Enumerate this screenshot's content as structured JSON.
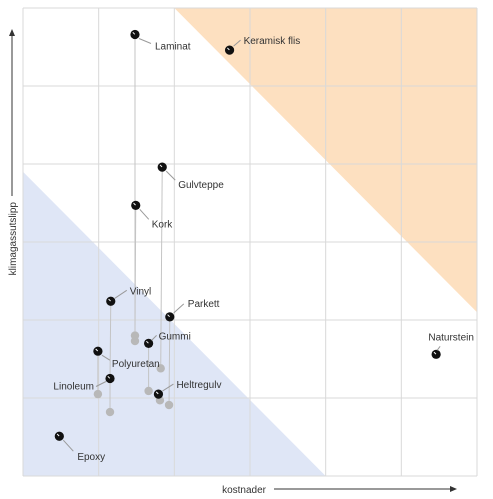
{
  "chart_data": {
    "type": "scatter",
    "xlabel": "kostnader",
    "ylabel": "klimagassutslipp",
    "xlim": [
      0,
      6
    ],
    "ylim": [
      0,
      6
    ],
    "grid": true,
    "tick_labels": false,
    "colors": {
      "high_zone": "#fde0c0",
      "low_zone": "#dfe6f6",
      "point": "#111111",
      "secondary_point": "#b8b8b8",
      "connector": "#c4c4c4",
      "grid": "#d9d9d9"
    },
    "zones": [
      {
        "id": "high",
        "color_key": "high_zone",
        "polygon": [
          [
            2.0,
            6.0
          ],
          [
            6.0,
            6.0
          ],
          [
            6.0,
            2.1
          ]
        ]
      },
      {
        "id": "low",
        "color_key": "low_zone",
        "polygon": [
          [
            0.0,
            3.9
          ],
          [
            0.0,
            0.0
          ],
          [
            4.0,
            0.0
          ]
        ]
      }
    ],
    "points": [
      {
        "name": "Laminat",
        "x": 1.48,
        "y": 5.66
      },
      {
        "name": "Keramisk flis",
        "x": 2.73,
        "y": 5.46
      },
      {
        "name": "Gulvteppe",
        "x": 1.84,
        "y": 3.96
      },
      {
        "name": "Kork",
        "x": 1.49,
        "y": 3.47
      },
      {
        "name": "Vinyl",
        "x": 1.16,
        "y": 2.24
      },
      {
        "name": "Parkett",
        "x": 1.94,
        "y": 2.04
      },
      {
        "name": "Gummi",
        "x": 1.66,
        "y": 1.7
      },
      {
        "name": "Naturstein",
        "x": 5.46,
        "y": 1.56
      },
      {
        "name": "Polyuretan",
        "x": 0.99,
        "y": 1.6
      },
      {
        "name": "Linoleum",
        "x": 1.15,
        "y": 1.25
      },
      {
        "name": "Heltregulv",
        "x": 1.79,
        "y": 1.05
      },
      {
        "name": "Epoxy",
        "x": 0.48,
        "y": 0.51
      }
    ],
    "secondary_points": [
      {
        "x": 1.48,
        "y": 1.8
      },
      {
        "x": 1.48,
        "y": 1.73
      },
      {
        "x": 1.82,
        "y": 1.38
      },
      {
        "x": 1.66,
        "y": 1.09
      },
      {
        "x": 1.81,
        "y": 0.97
      },
      {
        "x": 1.93,
        "y": 0.91
      },
      {
        "x": 0.99,
        "y": 1.05
      },
      {
        "x": 1.15,
        "y": 0.82
      }
    ],
    "connectors": [
      {
        "from": [
          1.48,
          5.66
        ],
        "to": [
          1.48,
          1.73
        ]
      },
      {
        "from": [
          1.49,
          3.47
        ],
        "to": [
          1.48,
          1.8
        ]
      },
      {
        "from": [
          1.84,
          3.96
        ],
        "to": [
          1.82,
          1.38
        ]
      },
      {
        "from": [
          1.94,
          2.04
        ],
        "to": [
          1.93,
          0.91
        ]
      },
      {
        "from": [
          1.66,
          1.7
        ],
        "to": [
          1.66,
          1.09
        ]
      },
      {
        "from": [
          1.16,
          2.24
        ],
        "to": [
          1.15,
          1.25
        ]
      },
      {
        "from": [
          1.15,
          1.25
        ],
        "to": [
          1.15,
          0.82
        ]
      },
      {
        "from": [
          0.99,
          1.6
        ],
        "to": [
          0.99,
          1.05
        ]
      },
      {
        "from": [
          1.79,
          1.05
        ],
        "to": [
          1.81,
          0.97
        ]
      }
    ]
  }
}
